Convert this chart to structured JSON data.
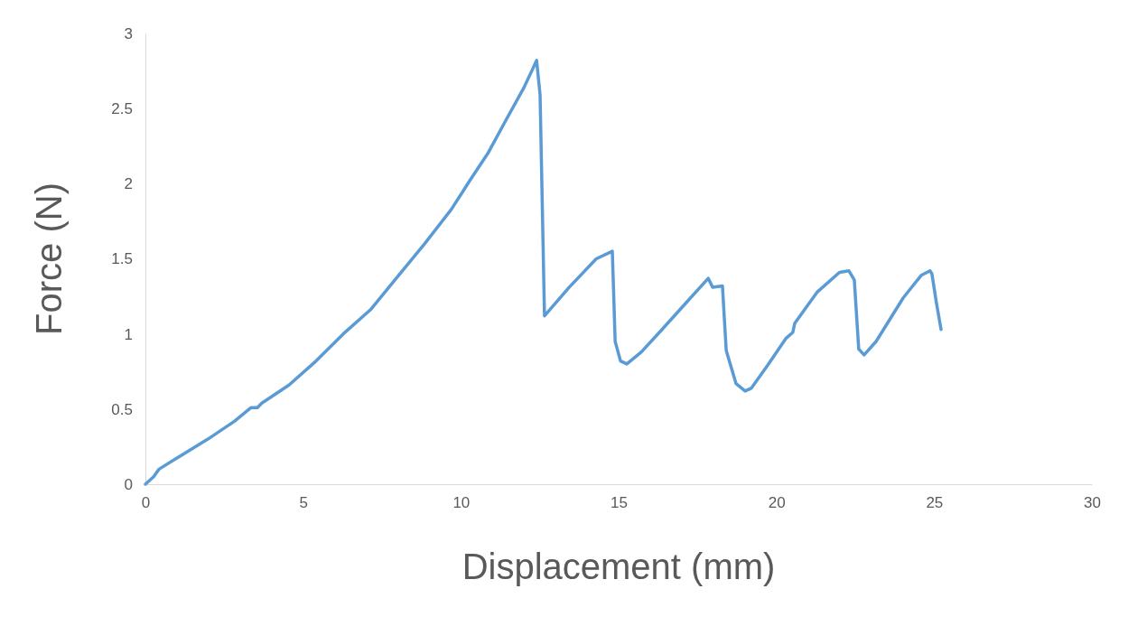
{
  "chart_data": {
    "type": "line",
    "xlabel": "Displacement (mm)",
    "ylabel": "Force (N)",
    "xlim": [
      0,
      30
    ],
    "xticks": [
      0,
      5,
      10,
      15,
      20,
      25,
      30
    ],
    "ylim": [
      0,
      3
    ],
    "yticks": [
      0,
      0.5,
      1,
      1.5,
      2,
      2.5,
      3
    ],
    "grid": false,
    "marker": "none",
    "line_style": "solid",
    "series": [
      {
        "color": "#5b9bd5",
        "x": [
          0,
          0.26,
          0.43,
          1.12,
          1.98,
          2.83,
          3.35,
          3.55,
          3.69,
          4.55,
          5.41,
          6.27,
          7.13,
          7.99,
          8.85,
          9.7,
          10.28,
          10.85,
          11.42,
          12.0,
          12.4,
          12.51,
          12.65,
          13.43,
          14.29,
          14.8,
          14.89,
          15.06,
          15.26,
          15.72,
          16.29,
          17.15,
          17.84,
          17.98,
          18.29,
          18.41,
          18.72,
          19.01,
          19.21,
          19.72,
          20.3,
          20.52,
          20.58,
          21.3,
          22.0,
          22.3,
          22.47,
          22.61,
          22.78,
          23.16,
          24.02,
          24.59,
          24.87,
          24.93,
          25.07,
          25.22
        ],
        "values": [
          0,
          0.05,
          0.1,
          0.19,
          0.3,
          0.42,
          0.51,
          0.51,
          0.54,
          0.66,
          0.82,
          1.0,
          1.16,
          1.38,
          1.6,
          1.83,
          2.02,
          2.2,
          2.42,
          2.64,
          2.82,
          2.59,
          1.12,
          1.31,
          1.5,
          1.55,
          0.95,
          0.82,
          0.8,
          0.88,
          1.01,
          1.21,
          1.37,
          1.31,
          1.32,
          0.89,
          0.67,
          0.62,
          0.64,
          0.79,
          0.97,
          1.01,
          1.07,
          1.28,
          1.41,
          1.42,
          1.36,
          0.9,
          0.86,
          0.95,
          1.24,
          1.39,
          1.42,
          1.4,
          1.21,
          1.03
        ]
      }
    ]
  }
}
